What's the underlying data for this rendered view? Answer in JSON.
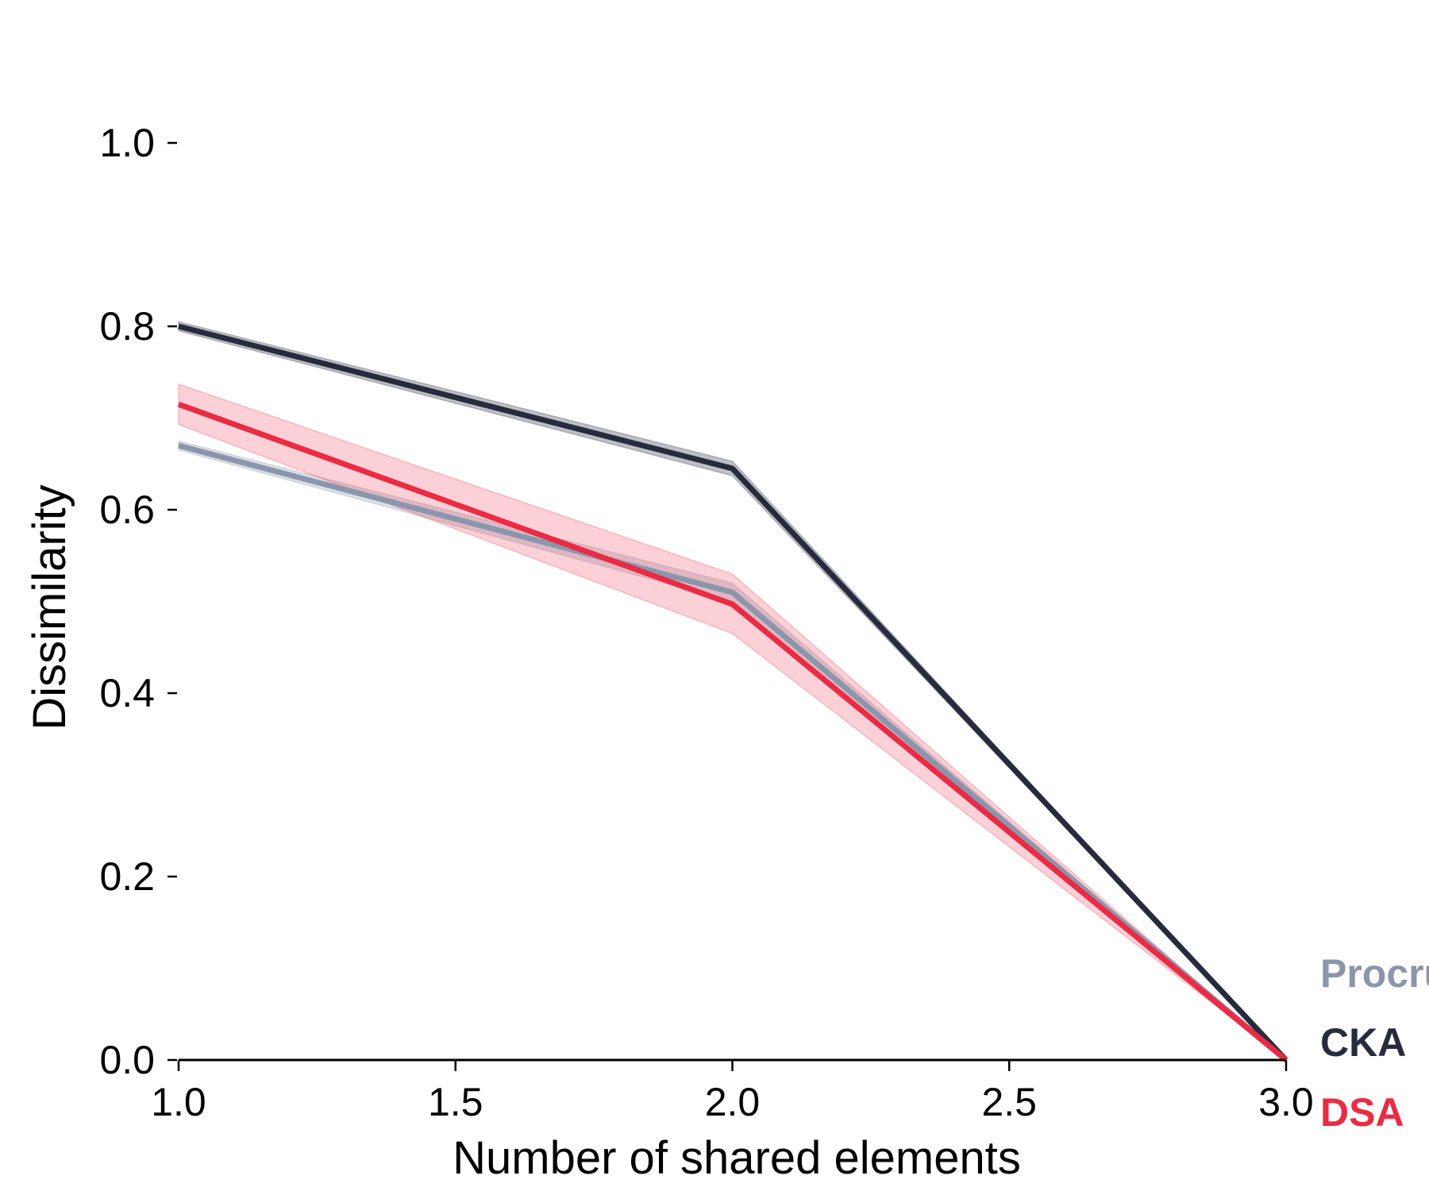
{
  "chart_data": {
    "type": "line",
    "title": "",
    "xlabel": "Number of shared elements",
    "ylabel": "Dissimilarity",
    "xlim": [
      1.0,
      3.0
    ],
    "ylim": [
      0.0,
      1.0
    ],
    "x_ticks": [
      "1.0",
      "1.5",
      "2.0",
      "2.5",
      "3.0"
    ],
    "y_ticks": [
      "0.0",
      "0.2",
      "0.4",
      "0.6",
      "0.8",
      "1.0"
    ],
    "grid": false,
    "legend_placement": "right, outside plot",
    "series": [
      {
        "name": "Procrustes",
        "color": "#8a96ab",
        "x": [
          1.0,
          2.0,
          3.0
        ],
        "values": [
          0.67,
          0.51,
          0.0
        ],
        "lower": [
          0.665,
          0.5,
          0.0
        ],
        "upper": [
          0.675,
          0.52,
          0.0
        ]
      },
      {
        "name": "CKA",
        "color": "#262b3d",
        "x": [
          1.0,
          2.0,
          3.0
        ],
        "values": [
          0.8,
          0.645,
          0.0
        ],
        "lower": [
          0.795,
          0.637,
          0.0
        ],
        "upper": [
          0.805,
          0.653,
          0.0
        ]
      },
      {
        "name": "DSA",
        "color": "#eb2a44",
        "x": [
          1.0,
          2.0,
          3.0
        ],
        "values": [
          0.715,
          0.497,
          0.0
        ],
        "lower": [
          0.693,
          0.465,
          0.0
        ],
        "upper": [
          0.737,
          0.53,
          0.0
        ]
      }
    ]
  }
}
